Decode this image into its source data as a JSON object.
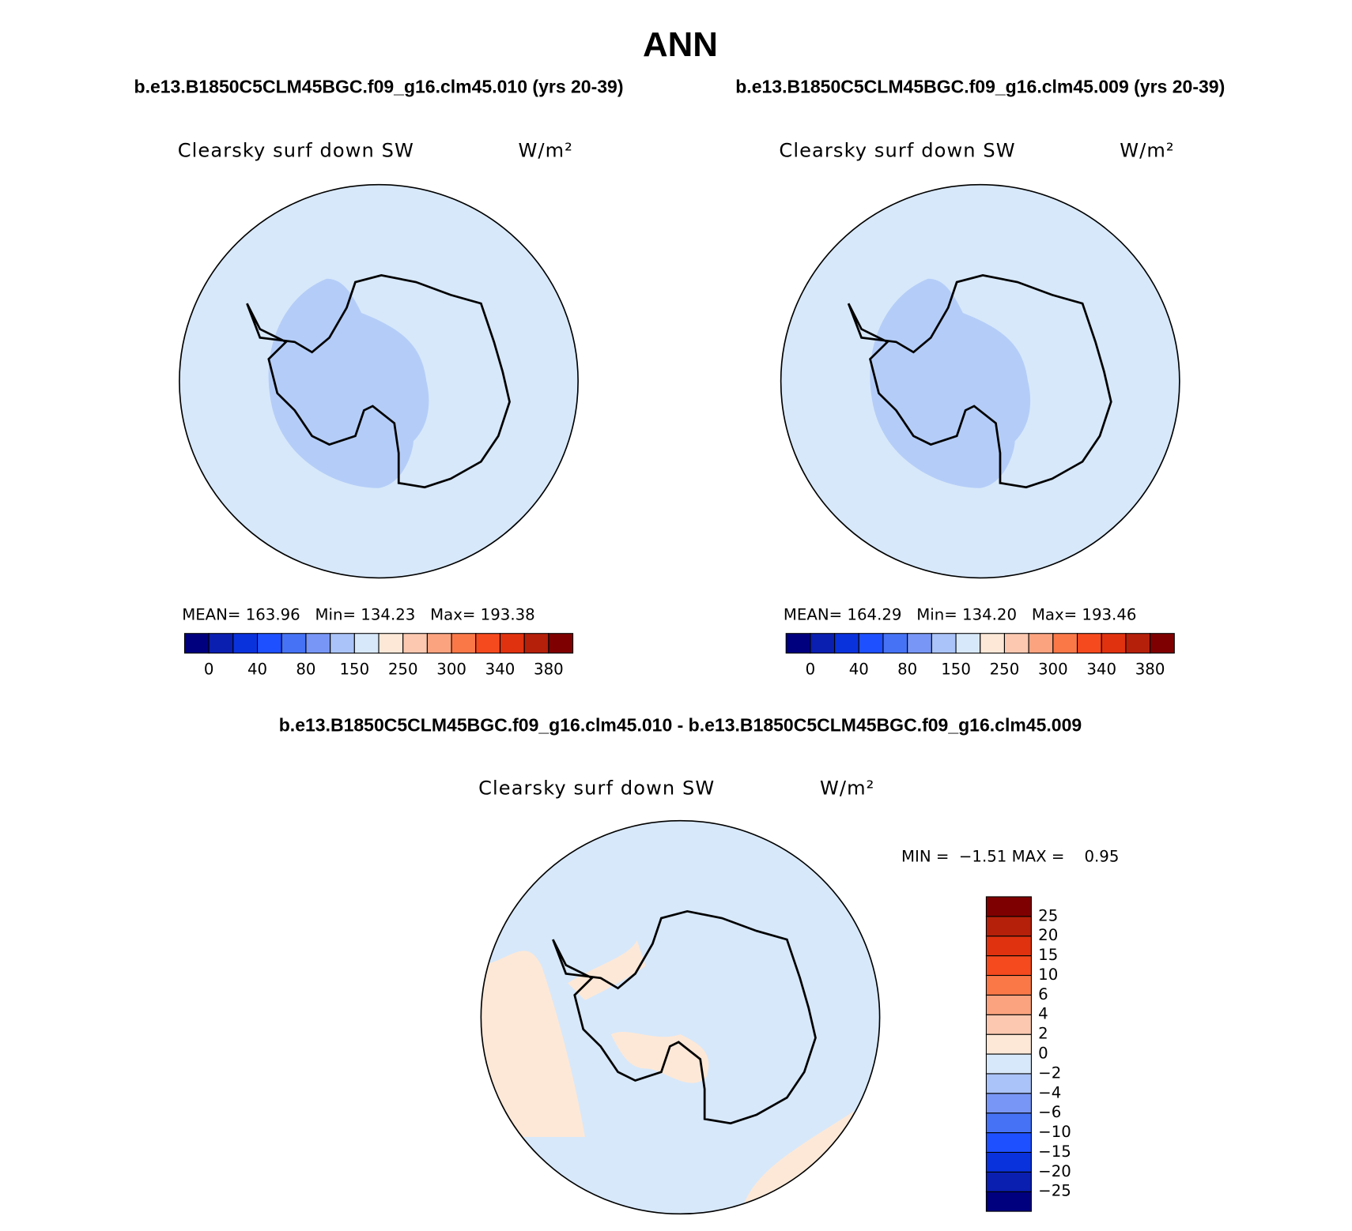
{
  "title": "ANN",
  "panels": [
    {
      "subtitle": "b.e13.B1850C5CLM45BGC.f09_g16.clm45.010 (yrs 20-39)",
      "field": "Clearsky surf down SW",
      "units": "W/m²",
      "stats": "MEAN= 163.96   Min= 134.23   Max= 193.38",
      "colorbar": {
        "orientation": "horizontal",
        "colors": [
          "#00007f",
          "#0a1fb0",
          "#0a32dc",
          "#1e50ff",
          "#4673f5",
          "#7896f5",
          "#aac3f8",
          "#d7e8fa",
          "#fde8d7",
          "#fcc8b0",
          "#fba37f",
          "#fa7848",
          "#f54a1e",
          "#e0320f",
          "#b4200a",
          "#7f0000"
        ],
        "labels": [
          "0",
          null,
          "40",
          null,
          "80",
          null,
          "150",
          null,
          "250",
          null,
          "300",
          null,
          "340",
          null,
          "380"
        ]
      }
    },
    {
      "subtitle": "b.e13.B1850C5CLM45BGC.f09_g16.clm45.009 (yrs 20-39)",
      "field": "Clearsky surf down SW",
      "units": "W/m²",
      "stats": "MEAN= 164.29   Min= 134.20   Max= 193.46",
      "colorbar": {
        "orientation": "horizontal",
        "colors": [
          "#00007f",
          "#0a1fb0",
          "#0a32dc",
          "#1e50ff",
          "#4673f5",
          "#7896f5",
          "#aac3f8",
          "#d7e8fa",
          "#fde8d7",
          "#fcc8b0",
          "#fba37f",
          "#fa7848",
          "#f54a1e",
          "#e0320f",
          "#b4200a",
          "#7f0000"
        ],
        "labels": [
          "0",
          null,
          "40",
          null,
          "80",
          null,
          "150",
          null,
          "250",
          null,
          "300",
          null,
          "340",
          null,
          "380"
        ]
      }
    },
    {
      "subtitle": "b.e13.B1850C5CLM45BGC.f09_g16.clm45.010 - b.e13.B1850C5CLM45BGC.f09_g16.clm45.009",
      "field": "Clearsky surf down SW",
      "units": "W/m²",
      "stats": "MIN =  −1.51 MAX =    0.95",
      "colorbar": {
        "orientation": "vertical",
        "colors": [
          "#00007f",
          "#0a1fb0",
          "#0a32dc",
          "#1e50ff",
          "#4673f5",
          "#7896f5",
          "#aac3f8",
          "#d7e8fa",
          "#fde8d7",
          "#fcc8b0",
          "#fba37f",
          "#fa7848",
          "#f54a1e",
          "#e0320f",
          "#b4200a",
          "#7f0000"
        ],
        "labels": [
          "−25",
          "−20",
          "−15",
          "−10",
          "−6",
          "−4",
          "−2",
          "0",
          "2",
          "4",
          "6",
          "10",
          "15",
          "20",
          "25"
        ]
      }
    }
  ]
}
